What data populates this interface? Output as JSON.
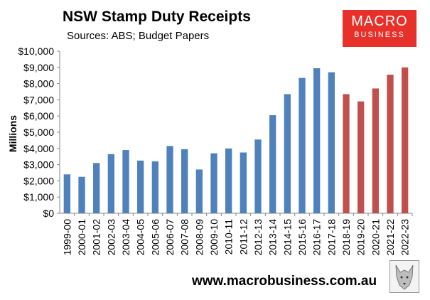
{
  "header": {
    "title": "NSW Stamp Duty Receipts",
    "subtitle": "Sources: ABS; Budget Papers"
  },
  "logo": {
    "line1": "MACRO",
    "line2": "BUSINESS",
    "color": "#e8302a"
  },
  "footer": {
    "url": "www.macrobusiness.com.au"
  },
  "watermark_icon": "wolf-icon",
  "chart_data": {
    "type": "bar",
    "title": "NSW Stamp Duty Receipts",
    "xlabel": "",
    "ylabel": "Millions",
    "ylim": [
      0,
      10000
    ],
    "yticks": [
      "$0",
      "$1,000",
      "$2,000",
      "$3,000",
      "$4,000",
      "$5,000",
      "$6,000",
      "$7,000",
      "$8,000",
      "$9,000",
      "$10,000"
    ],
    "grid": false,
    "legend": "none",
    "categories": [
      "1999-00",
      "2000-01",
      "2001-02",
      "2002-03",
      "2003-04",
      "2004-05",
      "2005-06",
      "2006-07",
      "2007-08",
      "2008-09",
      "2009-10",
      "2010-11",
      "2011-12",
      "2012-13",
      "2013-14",
      "2014-15",
      "2015-16",
      "2016-17",
      "2017-18",
      "2018-19",
      "2019-20",
      "2020-21",
      "2021-22",
      "2022-23"
    ],
    "values": [
      2400,
      2250,
      3100,
      3650,
      3900,
      3250,
      3200,
      4150,
      3950,
      2700,
      3700,
      4000,
      3750,
      4550,
      6050,
      7350,
      8350,
      8950,
      8700,
      7350,
      6900,
      7700,
      8550,
      9000
    ],
    "colors": {
      "actual": "#4f81bd",
      "forecast": "#c0504d"
    },
    "forecast_start": "2018-19"
  }
}
